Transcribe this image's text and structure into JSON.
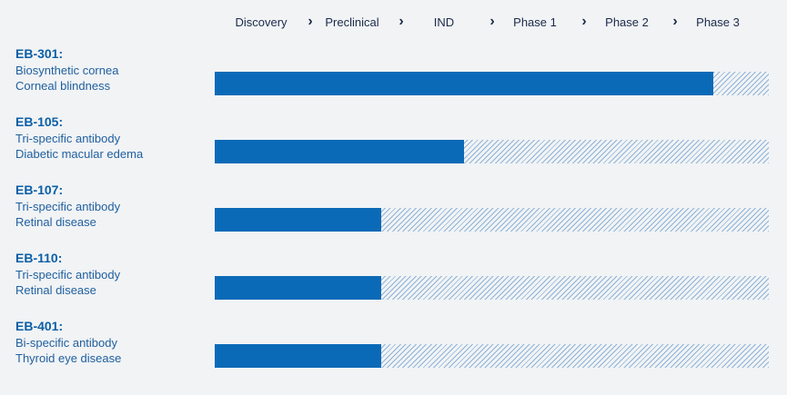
{
  "stages": [
    "Discovery",
    "Preclinical",
    "IND",
    "Phase 1",
    "Phase 2",
    "Phase 3"
  ],
  "colors": {
    "background": "#f1f3f5",
    "progress_fill": "#0b6ab7",
    "remaining_hatch": "#8eb3d6",
    "id_text": "#0b5fa5",
    "desc_text": "#1f5f9e",
    "header_text": "#1c2a4a"
  },
  "programs": [
    {
      "id": "EB-301:",
      "modality": "Biosynthetic cornea",
      "indication": "Corneal blindness"
    },
    {
      "id": "EB-105:",
      "modality": "Tri-specific antibody",
      "indication": "Diabetic macular edema"
    },
    {
      "id": "EB-107:",
      "modality": "Tri-specific antibody",
      "indication": "Retinal disease"
    },
    {
      "id": "EB-110:",
      "modality": "Tri-specific antibody",
      "indication": "Retinal disease"
    },
    {
      "id": "EB-401:",
      "modality": "Bi-specific antibody",
      "indication": "Thyroid eye disease"
    }
  ],
  "chart_data": {
    "type": "bar",
    "orientation": "horizontal",
    "categories": [
      "EB-301",
      "EB-105",
      "EB-107",
      "EB-110",
      "EB-401"
    ],
    "x_stages": [
      "Discovery",
      "Preclinical",
      "IND",
      "Phase 1",
      "Phase 2",
      "Phase 3"
    ],
    "values_fraction_of_pipeline": [
      0.9,
      0.45,
      0.3,
      0.3,
      0.3
    ],
    "xlim": [
      0,
      1
    ],
    "grid": false,
    "legend": "none"
  }
}
